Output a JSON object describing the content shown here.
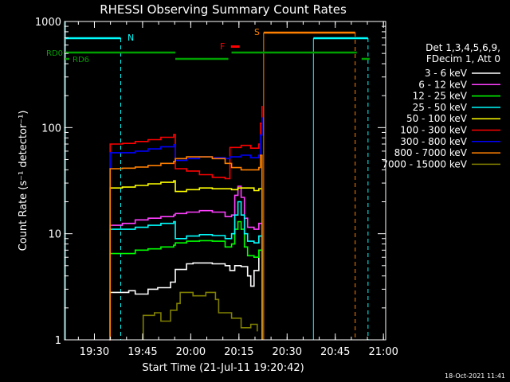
{
  "chart_data": {
    "type": "line",
    "title": "RHESSI Observing Summary Count Rates",
    "xlabel": "Start Time (21-Jul-11 19:20:42)",
    "ylabel": "Count Rate (s⁻¹ detector⁻¹)",
    "ylim": [
      1,
      1000
    ],
    "yscale": "log",
    "xlim_minutes": [
      0,
      100
    ],
    "x_ticks": [
      {
        "t": 9.3,
        "label": "19:30"
      },
      {
        "t": 24.3,
        "label": "19:45"
      },
      {
        "t": 39.3,
        "label": "20:00"
      },
      {
        "t": 54.3,
        "label": "20:15"
      },
      {
        "t": 69.3,
        "label": "20:30"
      },
      {
        "t": 84.3,
        "label": "20:45"
      },
      {
        "t": 99.3,
        "label": "21:00"
      }
    ],
    "y_ticks": [
      {
        "v": 1,
        "label": "1"
      },
      {
        "v": 10,
        "label": "10"
      },
      {
        "v": 100,
        "label": "100"
      },
      {
        "v": 1000,
        "label": "1000"
      }
    ],
    "legend_header": [
      "Det 1,3,4,5,6,9,",
      "FDecim 1, Att 0"
    ],
    "series": [
      {
        "name": "3 - 6 keV",
        "color": "#ffffff",
        "points": [
          [
            14,
            1.0
          ],
          [
            14.2,
            2.8
          ],
          [
            20,
            2.9
          ],
          [
            22,
            2.7
          ],
          [
            26,
            3.0
          ],
          [
            29,
            3.1
          ],
          [
            33,
            3.5
          ],
          [
            34.5,
            4.6
          ],
          [
            38,
            5.2
          ],
          [
            40,
            5.3
          ],
          [
            46,
            5.2
          ],
          [
            50,
            5.0
          ],
          [
            51.5,
            4.5
          ],
          [
            53,
            5.0
          ],
          [
            55,
            4.9
          ],
          [
            57,
            4.0
          ],
          [
            58,
            3.2
          ],
          [
            59,
            4.5
          ],
          [
            60.5,
            7.0
          ],
          [
            61.5,
            1.0
          ]
        ]
      },
      {
        "name": "6 - 12 keV",
        "color": "#ff40ff",
        "points": [
          [
            14,
            1.0
          ],
          [
            14.2,
            12
          ],
          [
            18,
            12.5
          ],
          [
            22,
            13.5
          ],
          [
            26,
            14
          ],
          [
            30,
            14.5
          ],
          [
            34,
            15
          ],
          [
            34.5,
            15.5
          ],
          [
            38,
            16
          ],
          [
            42,
            16.5
          ],
          [
            46,
            16
          ],
          [
            50,
            14.5
          ],
          [
            52,
            15
          ],
          [
            53,
            23
          ],
          [
            54,
            28
          ],
          [
            55,
            22
          ],
          [
            56,
            14
          ],
          [
            57,
            11.5
          ],
          [
            59,
            11
          ],
          [
            60.5,
            12.5
          ],
          [
            61.5,
            1.0
          ]
        ]
      },
      {
        "name": "12 - 25 keV",
        "color": "#00ff00",
        "points": [
          [
            14,
            1.0
          ],
          [
            14.2,
            6.5
          ],
          [
            18,
            6.5
          ],
          [
            22,
            7
          ],
          [
            26,
            7.2
          ],
          [
            30,
            7.5
          ],
          [
            34,
            7.8
          ],
          [
            34.5,
            8.2
          ],
          [
            38,
            8.5
          ],
          [
            42,
            8.6
          ],
          [
            46,
            8.5
          ],
          [
            50,
            7.5
          ],
          [
            52,
            8
          ],
          [
            53,
            11
          ],
          [
            54,
            13
          ],
          [
            55,
            11
          ],
          [
            56,
            7.5
          ],
          [
            57,
            6.2
          ],
          [
            59,
            6
          ],
          [
            60.5,
            7
          ],
          [
            61.5,
            1.0
          ]
        ]
      },
      {
        "name": "25 - 50 keV",
        "color": "#00ffff",
        "points": [
          [
            14,
            1.0
          ],
          [
            14.2,
            11
          ],
          [
            18,
            11
          ],
          [
            22,
            11.5
          ],
          [
            26,
            12
          ],
          [
            30,
            12.5
          ],
          [
            34,
            13
          ],
          [
            34.5,
            9
          ],
          [
            38,
            9.5
          ],
          [
            42,
            9.8
          ],
          [
            46,
            9.6
          ],
          [
            50,
            9
          ],
          [
            52,
            10
          ],
          [
            53,
            15
          ],
          [
            54,
            20
          ],
          [
            55,
            15
          ],
          [
            56,
            10
          ],
          [
            57,
            8.5
          ],
          [
            59,
            8.2
          ],
          [
            60.5,
            9.5
          ],
          [
            61.5,
            1.0
          ]
        ]
      },
      {
        "name": "50 - 100 keV",
        "color": "#ffff00",
        "points": [
          [
            14,
            1.0
          ],
          [
            14.2,
            27
          ],
          [
            18,
            27.5
          ],
          [
            22,
            28.5
          ],
          [
            26,
            29.5
          ],
          [
            30,
            30.5
          ],
          [
            34,
            31.5
          ],
          [
            34.5,
            25
          ],
          [
            38,
            26
          ],
          [
            42,
            27
          ],
          [
            46,
            26.5
          ],
          [
            50,
            26.5
          ],
          [
            52,
            26
          ],
          [
            54,
            27
          ],
          [
            56,
            27
          ],
          [
            59,
            25.5
          ],
          [
            60.5,
            26.5
          ],
          [
            61.5,
            1.0
          ]
        ]
      },
      {
        "name": "100 - 300 keV",
        "color": "#ff0000",
        "points": [
          [
            14,
            1.0
          ],
          [
            14.2,
            70
          ],
          [
            18,
            71
          ],
          [
            22,
            74
          ],
          [
            26,
            77
          ],
          [
            30,
            81
          ],
          [
            34,
            86
          ],
          [
            34.5,
            41
          ],
          [
            38,
            39
          ],
          [
            42,
            36
          ],
          [
            46,
            34
          ],
          [
            50,
            33
          ],
          [
            51.5,
            65
          ],
          [
            55,
            68
          ],
          [
            58,
            64
          ],
          [
            60.5,
            70
          ],
          [
            61,
            110
          ],
          [
            61.5,
            160
          ]
        ]
      },
      {
        "name": "300 - 800 keV",
        "color": "#0000ff",
        "points": [
          [
            14,
            1.0
          ],
          [
            14.2,
            58
          ],
          [
            18,
            58
          ],
          [
            22,
            60
          ],
          [
            26,
            63
          ],
          [
            30,
            66
          ],
          [
            34,
            69
          ],
          [
            34.5,
            49
          ],
          [
            38,
            51
          ],
          [
            42,
            53
          ],
          [
            46,
            52
          ],
          [
            50,
            51
          ],
          [
            51.5,
            53
          ],
          [
            55,
            55
          ],
          [
            58,
            52
          ],
          [
            60.5,
            55
          ],
          [
            61,
            85
          ],
          [
            61.5,
            125
          ]
        ]
      },
      {
        "name": "800 - 7000 keV",
        "color": "#ff8000",
        "points": [
          [
            14,
            1.0
          ],
          [
            14.2,
            41
          ],
          [
            18,
            41.5
          ],
          [
            22,
            42.5
          ],
          [
            26,
            44
          ],
          [
            30,
            46
          ],
          [
            34,
            48
          ],
          [
            34.5,
            51
          ],
          [
            38,
            53
          ],
          [
            42,
            53
          ],
          [
            46,
            51
          ],
          [
            50,
            46
          ],
          [
            52,
            42
          ],
          [
            55,
            40
          ],
          [
            58,
            40
          ],
          [
            60.5,
            42
          ],
          [
            61,
            55
          ],
          [
            61.5,
            1.0
          ]
        ]
      },
      {
        "name": "7000 - 15000 keV",
        "color": "#808000",
        "points": [
          [
            24.5,
            1.0
          ],
          [
            24.5,
            1.7
          ],
          [
            28,
            1.8
          ],
          [
            30,
            1.5
          ],
          [
            33,
            1.9
          ],
          [
            35,
            2.2
          ],
          [
            36,
            2.8
          ],
          [
            40,
            2.6
          ],
          [
            44,
            2.8
          ],
          [
            47,
            2.4
          ],
          [
            48,
            1.8
          ],
          [
            52,
            1.6
          ],
          [
            55,
            1.3
          ],
          [
            58,
            1.4
          ],
          [
            60,
            1.2
          ]
        ]
      }
    ],
    "state_markers": [
      {
        "label": "N",
        "color": "#00ffff"
      },
      {
        "label": "RD0",
        "color": "#00a000"
      },
      {
        "label": "RD6",
        "color": "#00a000"
      },
      {
        "label": "F",
        "color": "#ff0000"
      },
      {
        "label": "S",
        "color": "#ff8000"
      }
    ]
  },
  "footer": {
    "date": "18-Oct-2021 11:41"
  }
}
